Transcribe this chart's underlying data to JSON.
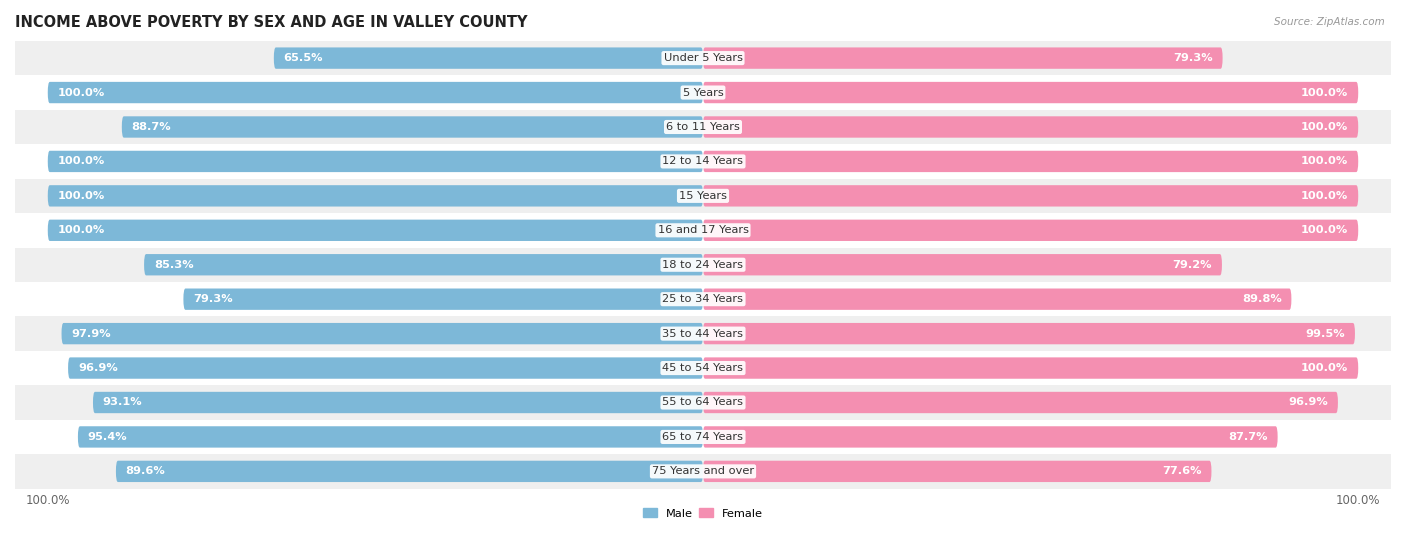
{
  "title": "INCOME ABOVE POVERTY BY SEX AND AGE IN VALLEY COUNTY",
  "source": "Source: ZipAtlas.com",
  "categories": [
    "Under 5 Years",
    "5 Years",
    "6 to 11 Years",
    "12 to 14 Years",
    "15 Years",
    "16 and 17 Years",
    "18 to 24 Years",
    "25 to 34 Years",
    "35 to 44 Years",
    "45 to 54 Years",
    "55 to 64 Years",
    "65 to 74 Years",
    "75 Years and over"
  ],
  "male": [
    65.5,
    100.0,
    88.7,
    100.0,
    100.0,
    100.0,
    85.3,
    79.3,
    97.9,
    96.9,
    93.1,
    95.4,
    89.6
  ],
  "female": [
    79.3,
    100.0,
    100.0,
    100.0,
    100.0,
    100.0,
    79.2,
    89.8,
    99.5,
    100.0,
    96.9,
    87.7,
    77.6
  ],
  "male_color": "#7db8d8",
  "female_color": "#f48fb1",
  "background_row_even": "#efefef",
  "background_row_odd": "#ffffff",
  "bar_height": 0.62,
  "title_fontsize": 10.5,
  "label_fontsize": 8.2,
  "tick_fontsize": 8.5,
  "legend_male": "Male",
  "legend_female": "Female"
}
